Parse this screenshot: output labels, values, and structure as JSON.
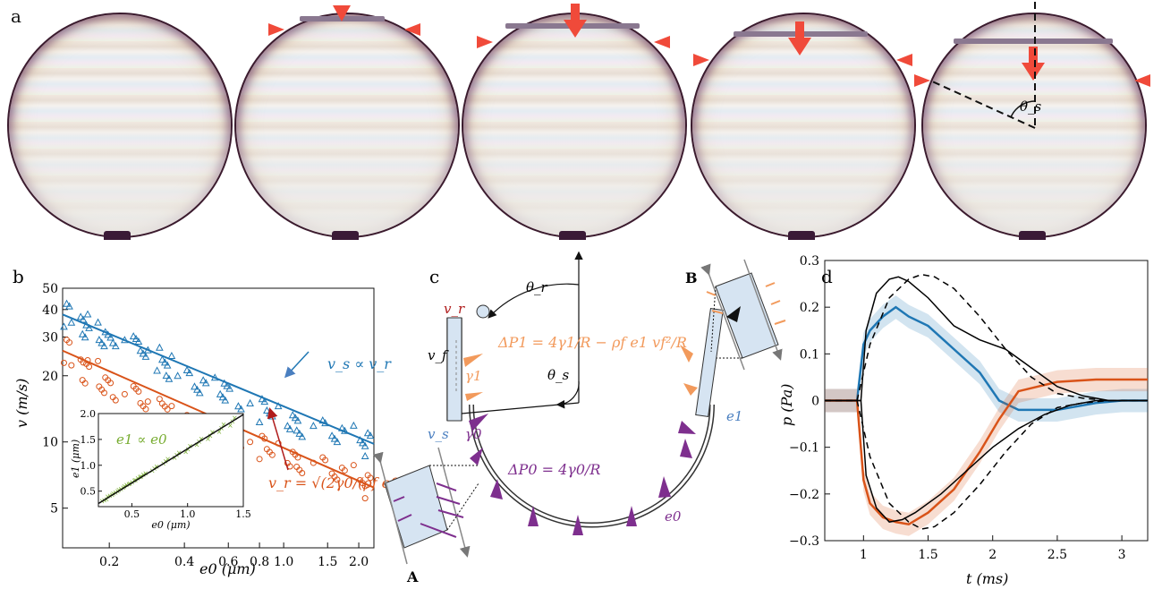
{
  "panels": {
    "a": {
      "letter": "a",
      "theta_label": "θ_s"
    },
    "b": {
      "letter": "b",
      "inset_label": "e1 ∝ e0",
      "vs_label": "v_s ∝ v_r",
      "vr_label": "v_r = √(2γ0/(ρf e0))",
      "xlabel": "e0 (μm)",
      "ylabel": "v (m/s)"
    },
    "c": {
      "letter": "c",
      "label_A": "A",
      "label_B": "B",
      "dp1_label": "ΔP1 = 4γ1/R − ρf e1 vf²/R",
      "dp0_label": "ΔP0 = 4γ0/R",
      "theta_r": "θ_r",
      "theta_s": "θ_s",
      "vr": "v_r",
      "vf": "v_f",
      "vs": "v_s",
      "gamma1": "γ1",
      "gamma0": "γ0",
      "e1": "e1",
      "e0": "e0"
    },
    "d": {
      "letter": "d",
      "xlabel": "t (ms)",
      "ylabel": "p (Pa)"
    }
  },
  "colors": {
    "blue": "#1f77b4",
    "orange": "#d95319",
    "green": "#77ac30",
    "purple": "#7e2f8e",
    "arrow_red": "#f04a3a",
    "light_orange": "#f29a5c"
  },
  "chart_data": [
    {
      "type": "scatter",
      "panel": "b",
      "xscale": "log",
      "yscale": "log",
      "xlim": [
        0.13,
        2.3
      ],
      "ylim": [
        3.3,
        50
      ],
      "xticks": [
        0.2,
        0.4,
        0.6,
        0.8,
        1.0,
        1.5,
        2.0
      ],
      "xtick_labels": [
        "0.2",
        "0.4",
        "0.6",
        "0.8",
        "1.0",
        "1.5",
        "2.0"
      ],
      "yticks": [
        5,
        10,
        20,
        30,
        40,
        50
      ],
      "ytick_labels": [
        "5",
        "10",
        "20",
        "30",
        "40",
        "50"
      ],
      "xlabel": "e0 (μm)",
      "ylabel": "v (m/s)",
      "series": [
        {
          "name": "v_s",
          "marker": "triangle",
          "color": "#1f77b4",
          "fit": {
            "x": [
              0.13,
              2.3
            ],
            "y": [
              38,
              9.8
            ]
          },
          "x": [
            0.14,
            0.15,
            0.16,
            0.17,
            0.18,
            0.2,
            0.22,
            0.25,
            0.28,
            0.3,
            0.33,
            0.36,
            0.4,
            0.45,
            0.5,
            0.55,
            0.6,
            0.7,
            0.8,
            0.9,
            1.0,
            1.1,
            1.2,
            1.4,
            1.6,
            1.8,
            2.0,
            2.2
          ],
          "y": [
            38,
            36,
            34,
            33,
            31,
            29,
            30,
            27,
            26,
            24,
            23,
            22,
            20,
            19,
            18,
            17,
            16.5,
            15,
            14,
            13.5,
            13,
            12.5,
            12,
            11.5,
            11,
            10.6,
            10.2,
            9.8
          ]
        },
        {
          "name": "v_r",
          "marker": "circle",
          "color": "#d95319",
          "fit": {
            "x": [
              0.13,
              2.3
            ],
            "y": [
              26,
              6.2
            ]
          },
          "x": [
            0.14,
            0.15,
            0.16,
            0.17,
            0.18,
            0.2,
            0.22,
            0.25,
            0.28,
            0.3,
            0.33,
            0.36,
            0.4,
            0.45,
            0.5,
            0.55,
            0.6,
            0.7,
            0.8,
            0.9,
            1.0,
            1.1,
            1.2,
            1.4,
            1.6,
            1.8,
            2.0,
            2.2
          ],
          "y": [
            26,
            23,
            21,
            22,
            19,
            18,
            17,
            16,
            15,
            14,
            14.5,
            13,
            12.5,
            12,
            11.5,
            11,
            10.5,
            10,
            9.5,
            9,
            8.8,
            8.5,
            8.2,
            7.8,
            7.4,
            7,
            6.7,
            6.3
          ]
        }
      ]
    },
    {
      "type": "scatter",
      "panel": "b-inset",
      "xlim": [
        0.2,
        1.5
      ],
      "ylim": [
        0.2,
        2.0
      ],
      "xticks": [
        0.5,
        1.0,
        1.5
      ],
      "xtick_labels": [
        "0.5",
        "1.0",
        "1.5"
      ],
      "yticks": [
        0.5,
        1.0,
        1.5,
        2.0
      ],
      "ytick_labels": [
        "0.5",
        "1.0",
        "1.5",
        "2.0"
      ],
      "xlabel": "e0 (μm)",
      "ylabel": "e1 (μm)",
      "series": [
        {
          "name": "e1",
          "color": "#77ac30",
          "x": [
            0.25,
            0.3,
            0.35,
            0.4,
            0.45,
            0.5,
            0.55,
            0.6,
            0.7,
            0.8,
            0.9,
            1.0,
            1.1,
            1.2,
            1.3,
            1.4
          ],
          "y": [
            0.33,
            0.42,
            0.48,
            0.55,
            0.62,
            0.68,
            0.75,
            0.82,
            0.94,
            1.08,
            1.2,
            1.32,
            1.46,
            1.58,
            1.72,
            1.85
          ]
        }
      ]
    },
    {
      "type": "line",
      "panel": "d",
      "xlim": [
        0.7,
        3.2
      ],
      "ylim": [
        -0.3,
        0.3
      ],
      "xticks": [
        1,
        1.5,
        2,
        2.5,
        3
      ],
      "xtick_labels": [
        "1",
        "1.5",
        "2",
        "2.5",
        "3"
      ],
      "yticks": [
        -0.3,
        -0.2,
        -0.1,
        0,
        0.1,
        0.2,
        0.3
      ],
      "ytick_labels": [
        "−0.3",
        "−0.2",
        "−0.1",
        "0",
        "0.1",
        "0.2",
        "0.3"
      ],
      "xlabel": "t (ms)",
      "ylabel": "p (Pa)",
      "series": [
        {
          "name": "blue",
          "color": "#1f77b4",
          "x": [
            0.7,
            0.95,
            1.0,
            1.05,
            1.15,
            1.25,
            1.35,
            1.5,
            1.7,
            1.9,
            2.05,
            2.2,
            2.5,
            2.8,
            3.0,
            3.2
          ],
          "y": [
            0,
            0,
            0.12,
            0.15,
            0.18,
            0.2,
            0.18,
            0.16,
            0.11,
            0.06,
            0.0,
            -0.02,
            -0.02,
            -0.005,
            0,
            0
          ]
        },
        {
          "name": "orange",
          "color": "#d95319",
          "x": [
            0.7,
            0.95,
            1.0,
            1.05,
            1.15,
            1.25,
            1.35,
            1.5,
            1.7,
            1.9,
            2.05,
            2.2,
            2.5,
            2.8,
            3.0,
            3.2
          ],
          "y": [
            0,
            0,
            -0.17,
            -0.22,
            -0.25,
            -0.26,
            -0.265,
            -0.24,
            -0.19,
            -0.11,
            -0.04,
            0.02,
            0.04,
            0.045,
            0.045,
            0.045
          ]
        },
        {
          "name": "black",
          "color": "#000000",
          "x": [
            0.7,
            0.98,
            1.02,
            1.1,
            1.2,
            1.27,
            1.35,
            1.5,
            1.7,
            1.9,
            2.1,
            2.3,
            2.5,
            2.7,
            2.9,
            3.2
          ],
          "y": [
            0,
            0,
            0.15,
            0.23,
            0.26,
            0.265,
            0.255,
            0.22,
            0.16,
            0.13,
            0.11,
            0.07,
            0.03,
            0.01,
            0,
            0
          ]
        },
        {
          "name": "black-neg",
          "color": "#000000",
          "x": [
            0.7,
            0.98,
            1.02,
            1.1,
            1.2,
            1.3,
            1.4,
            1.6,
            1.8,
            2.0,
            2.2,
            2.4,
            2.6,
            2.8,
            3.2
          ],
          "y": [
            0,
            0,
            -0.16,
            -0.23,
            -0.26,
            -0.255,
            -0.24,
            -0.2,
            -0.15,
            -0.1,
            -0.06,
            -0.03,
            -0.01,
            0,
            0
          ]
        },
        {
          "name": "dashed-pos",
          "color": "#000000",
          "dashed": true,
          "x": [
            0.7,
            0.95,
            1.05,
            1.2,
            1.35,
            1.45,
            1.55,
            1.7,
            1.9,
            2.1,
            2.3,
            2.5,
            2.7,
            2.9,
            3.2
          ],
          "y": [
            0,
            0,
            0.12,
            0.22,
            0.26,
            0.27,
            0.265,
            0.24,
            0.18,
            0.11,
            0.05,
            0.015,
            0.005,
            0,
            0
          ]
        },
        {
          "name": "dashed-neg",
          "color": "#000000",
          "dashed": true,
          "x": [
            0.7,
            0.95,
            1.05,
            1.2,
            1.35,
            1.45,
            1.55,
            1.7,
            1.9,
            2.1,
            2.3,
            2.5,
            2.7,
            2.9,
            3.2
          ],
          "y": [
            0,
            0,
            -0.12,
            -0.22,
            -0.26,
            -0.275,
            -0.27,
            -0.24,
            -0.18,
            -0.11,
            -0.05,
            -0.015,
            -0.005,
            0,
            0
          ]
        }
      ]
    }
  ]
}
